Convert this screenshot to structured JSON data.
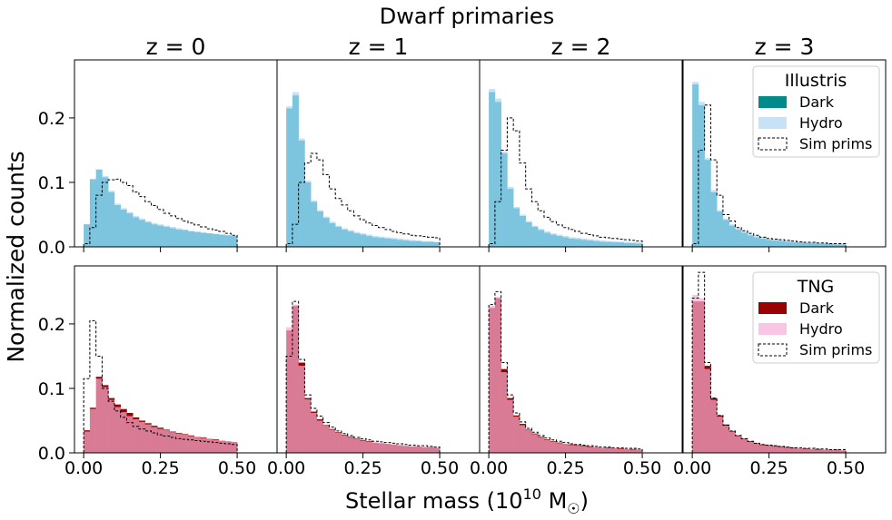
{
  "figure": {
    "suptitle": "Dwarf primaries",
    "ylabel": "Normalized counts",
    "xlabel_main": "Stellar mass (10",
    "xlabel_exp": "10",
    "xlabel_unit": " M",
    "xlabel_sub": "☉",
    "xlabel_close": ")"
  },
  "colors": {
    "illustris_dark": "#008b8b",
    "illustris_hydro": "#c6e2f7",
    "tng_dark": "#990000",
    "tng_hydro": "#f7c6e2",
    "overlap_top": "#7dc4de",
    "overlap_bottom": "#d97b95",
    "sim_prims": "#000000"
  },
  "legends": [
    {
      "title": "Illustris",
      "entries": [
        "Dark",
        "Hydro",
        "Sim prims"
      ]
    },
    {
      "title": "TNG",
      "entries": [
        "Dark",
        "Hydro",
        "Sim prims"
      ]
    }
  ],
  "chart_data": {
    "type": "bar",
    "subtype": "histogram-grid",
    "rows": [
      "Illustris",
      "TNG"
    ],
    "columns": [
      "z = 0",
      "z = 1",
      "z = 2",
      "z = 3"
    ],
    "bin_edges": [
      0.0,
      0.02,
      0.04,
      0.06,
      0.08,
      0.1,
      0.12,
      0.14,
      0.16,
      0.18,
      0.2,
      0.22,
      0.24,
      0.26,
      0.28,
      0.3,
      0.32,
      0.34,
      0.36,
      0.38,
      0.4,
      0.42,
      0.44,
      0.46,
      0.48,
      0.5
    ],
    "xlim": [
      -0.03,
      0.63
    ],
    "ylim": [
      0,
      0.29
    ],
    "xticks": [
      0.0,
      0.25,
      0.5
    ],
    "xtick_labels": [
      "0.00",
      "0.25",
      "0.50"
    ],
    "yticks": [
      0.0,
      0.1,
      0.2
    ],
    "ytick_labels": [
      "0.0",
      "0.1",
      "0.2"
    ],
    "panels": [
      {
        "title": "z = 0",
        "row": 0,
        "col": 0,
        "dark": [
          0.035,
          0.105,
          0.12,
          0.108,
          0.085,
          0.065,
          0.058,
          0.052,
          0.046,
          0.042,
          0.038,
          0.035,
          0.033,
          0.031,
          0.029,
          0.027,
          0.026,
          0.024,
          0.023,
          0.022,
          0.021,
          0.02,
          0.019,
          0.018,
          0.017
        ],
        "hydro": [
          0.035,
          0.105,
          0.12,
          0.11,
          0.087,
          0.067,
          0.06,
          0.054,
          0.048,
          0.044,
          0.04,
          0.037,
          0.035,
          0.033,
          0.031,
          0.029,
          0.027,
          0.025,
          0.024,
          0.022,
          0.021,
          0.02,
          0.019,
          0.018,
          0.017
        ],
        "sim": [
          0.005,
          0.03,
          0.08,
          0.1,
          0.104,
          0.105,
          0.1,
          0.095,
          0.085,
          0.078,
          0.07,
          0.064,
          0.058,
          0.052,
          0.048,
          0.044,
          0.04,
          0.037,
          0.034,
          0.031,
          0.028,
          0.026,
          0.024,
          0.021,
          0.018
        ]
      },
      {
        "title": "z = 1",
        "row": 0,
        "col": 1,
        "dark": [
          0.215,
          0.235,
          0.165,
          0.1,
          0.07,
          0.055,
          0.045,
          0.037,
          0.031,
          0.027,
          0.024,
          0.021,
          0.019,
          0.017,
          0.015,
          0.014,
          0.013,
          0.012,
          0.011,
          0.01,
          0.009,
          0.009,
          0.008,
          0.008,
          0.007
        ],
        "hydro": [
          0.218,
          0.24,
          0.168,
          0.103,
          0.072,
          0.057,
          0.047,
          0.039,
          0.033,
          0.029,
          0.026,
          0.023,
          0.021,
          0.019,
          0.017,
          0.016,
          0.015,
          0.014,
          0.013,
          0.012,
          0.011,
          0.01,
          0.009,
          0.009,
          0.008
        ],
        "sim": [
          0.005,
          0.035,
          0.1,
          0.13,
          0.145,
          0.135,
          0.112,
          0.09,
          0.075,
          0.065,
          0.056,
          0.048,
          0.042,
          0.037,
          0.033,
          0.03,
          0.027,
          0.024,
          0.022,
          0.02,
          0.018,
          0.017,
          0.016,
          0.015,
          0.014
        ]
      },
      {
        "title": "z = 2",
        "row": 0,
        "col": 2,
        "dark": [
          0.24,
          0.225,
          0.145,
          0.09,
          0.06,
          0.048,
          0.038,
          0.031,
          0.026,
          0.022,
          0.019,
          0.017,
          0.015,
          0.013,
          0.012,
          0.011,
          0.01,
          0.009,
          0.008,
          0.008,
          0.007,
          0.007,
          0.006,
          0.006,
          0.005
        ],
        "hydro": [
          0.245,
          0.23,
          0.148,
          0.093,
          0.062,
          0.05,
          0.04,
          0.033,
          0.028,
          0.024,
          0.021,
          0.019,
          0.017,
          0.015,
          0.014,
          0.013,
          0.012,
          0.011,
          0.01,
          0.009,
          0.009,
          0.008,
          0.008,
          0.007,
          0.007
        ],
        "sim": [
          0.005,
          0.07,
          0.15,
          0.2,
          0.18,
          0.13,
          0.09,
          0.07,
          0.056,
          0.046,
          0.039,
          0.034,
          0.03,
          0.027,
          0.024,
          0.021,
          0.019,
          0.017,
          0.015,
          0.014,
          0.013,
          0.012,
          0.011,
          0.01,
          0.009
        ]
      },
      {
        "title": "z = 3",
        "row": 0,
        "col": 3,
        "dark": [
          0.252,
          0.22,
          0.135,
          0.085,
          0.055,
          0.042,
          0.033,
          0.027,
          0.022,
          0.018,
          0.015,
          0.013,
          0.011,
          0.01,
          0.009,
          0.008,
          0.007,
          0.007,
          0.006,
          0.006,
          0.005,
          0.005,
          0.005,
          0.004,
          0.004
        ],
        "hydro": [
          0.256,
          0.225,
          0.138,
          0.088,
          0.057,
          0.044,
          0.035,
          0.029,
          0.024,
          0.02,
          0.017,
          0.015,
          0.013,
          0.012,
          0.011,
          0.01,
          0.009,
          0.008,
          0.007,
          0.007,
          0.006,
          0.006,
          0.006,
          0.005,
          0.005
        ],
        "sim": [
          0.005,
          0.15,
          0.22,
          0.135,
          0.08,
          0.05,
          0.04,
          0.03,
          0.025,
          0.021,
          0.018,
          0.015,
          0.013,
          0.012,
          0.011,
          0.01,
          0.009,
          0.008,
          0.007,
          0.007,
          0.006,
          0.006,
          0.005,
          0.005,
          0.005
        ]
      },
      {
        "title": "",
        "row": 1,
        "col": 0,
        "dark": [
          0.035,
          0.07,
          0.118,
          0.105,
          0.085,
          0.075,
          0.068,
          0.062,
          0.055,
          0.05,
          0.046,
          0.042,
          0.039,
          0.036,
          0.033,
          0.031,
          0.029,
          0.027,
          0.025,
          0.024,
          0.022,
          0.021,
          0.019,
          0.018,
          0.017
        ],
        "hydro": [
          0.033,
          0.068,
          0.115,
          0.102,
          0.082,
          0.071,
          0.063,
          0.057,
          0.052,
          0.048,
          0.044,
          0.04,
          0.037,
          0.035,
          0.032,
          0.03,
          0.028,
          0.026,
          0.025,
          0.023,
          0.022,
          0.02,
          0.019,
          0.018,
          0.017
        ],
        "sim": [
          0.115,
          0.205,
          0.15,
          0.1,
          0.08,
          0.065,
          0.055,
          0.047,
          0.041,
          0.037,
          0.034,
          0.031,
          0.028,
          0.026,
          0.024,
          0.022,
          0.021,
          0.02,
          0.019,
          0.018,
          0.017,
          0.016,
          0.015,
          0.014,
          0.013
        ]
      },
      {
        "title": "",
        "row": 1,
        "col": 1,
        "dark": [
          0.19,
          0.228,
          0.14,
          0.085,
          0.064,
          0.052,
          0.043,
          0.037,
          0.032,
          0.028,
          0.025,
          0.022,
          0.02,
          0.018,
          0.016,
          0.015,
          0.014,
          0.013,
          0.012,
          0.011,
          0.01,
          0.01,
          0.009,
          0.009,
          0.008
        ],
        "hydro": [
          0.195,
          0.23,
          0.135,
          0.083,
          0.062,
          0.05,
          0.042,
          0.036,
          0.031,
          0.027,
          0.024,
          0.021,
          0.019,
          0.017,
          0.016,
          0.015,
          0.014,
          0.013,
          0.012,
          0.011,
          0.01,
          0.01,
          0.009,
          0.009,
          0.008
        ],
        "sim": [
          0.15,
          0.235,
          0.145,
          0.09,
          0.069,
          0.057,
          0.047,
          0.04,
          0.034,
          0.03,
          0.027,
          0.024,
          0.022,
          0.02,
          0.018,
          0.017,
          0.016,
          0.015,
          0.014,
          0.013,
          0.012,
          0.011,
          0.011,
          0.01,
          0.009
        ]
      },
      {
        "title": "",
        "row": 1,
        "col": 2,
        "dark": [
          0.225,
          0.24,
          0.13,
          0.085,
          0.058,
          0.045,
          0.036,
          0.03,
          0.025,
          0.021,
          0.018,
          0.016,
          0.014,
          0.013,
          0.012,
          0.011,
          0.01,
          0.009,
          0.008,
          0.008,
          0.007,
          0.007,
          0.006,
          0.006,
          0.005
        ],
        "hydro": [
          0.228,
          0.242,
          0.125,
          0.082,
          0.056,
          0.043,
          0.035,
          0.029,
          0.024,
          0.02,
          0.017,
          0.015,
          0.014,
          0.012,
          0.011,
          0.01,
          0.009,
          0.009,
          0.008,
          0.007,
          0.007,
          0.006,
          0.006,
          0.005,
          0.005
        ],
        "sim": [
          0.23,
          0.25,
          0.14,
          0.09,
          0.062,
          0.048,
          0.038,
          0.032,
          0.027,
          0.023,
          0.02,
          0.018,
          0.016,
          0.014,
          0.013,
          0.012,
          0.011,
          0.01,
          0.009,
          0.009,
          0.008,
          0.008,
          0.007,
          0.007,
          0.006
        ]
      },
      {
        "title": "",
        "row": 1,
        "col": 3,
        "dark": [
          0.235,
          0.235,
          0.135,
          0.085,
          0.058,
          0.044,
          0.034,
          0.027,
          0.022,
          0.018,
          0.015,
          0.013,
          0.012,
          0.011,
          0.01,
          0.009,
          0.008,
          0.007,
          0.007,
          0.006,
          0.006,
          0.005,
          0.005,
          0.005,
          0.004
        ],
        "hydro": [
          0.245,
          0.24,
          0.13,
          0.082,
          0.056,
          0.042,
          0.033,
          0.026,
          0.021,
          0.017,
          0.014,
          0.012,
          0.011,
          0.01,
          0.009,
          0.008,
          0.007,
          0.007,
          0.006,
          0.006,
          0.005,
          0.005,
          0.005,
          0.004,
          0.004
        ],
        "sim": [
          0.24,
          0.28,
          0.14,
          0.085,
          0.058,
          0.043,
          0.034,
          0.027,
          0.022,
          0.018,
          0.015,
          0.013,
          0.012,
          0.011,
          0.01,
          0.009,
          0.008,
          0.008,
          0.007,
          0.007,
          0.006,
          0.006,
          0.005,
          0.005,
          0.005
        ]
      }
    ]
  }
}
